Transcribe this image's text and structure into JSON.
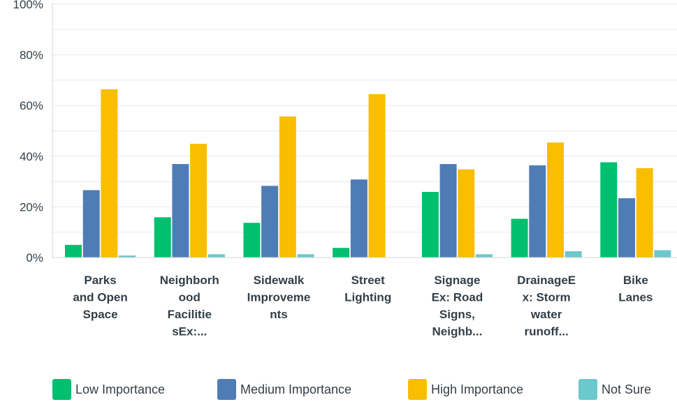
{
  "chart_data": {
    "type": "bar",
    "title": "",
    "xlabel": "",
    "ylabel": "",
    "ylim": [
      0,
      100
    ],
    "yticks": [
      "0%",
      "20%",
      "40%",
      "60%",
      "80%",
      "100%"
    ],
    "grid": true,
    "legend_position": "bottom",
    "categories": [
      [
        "Parks",
        "and Open",
        "Space"
      ],
      [
        "Neighborh",
        "ood",
        "Facilitie",
        "sEx:..."
      ],
      [
        "Sidewalk",
        "Improveme",
        "nts"
      ],
      [
        "Street",
        "Lighting"
      ],
      [
        "Signage",
        "Ex: Road",
        "Signs,",
        "Neighb..."
      ],
      [
        "DrainageE",
        "x: Storm",
        "water",
        "runoff..."
      ],
      [
        "Bike",
        "Lanes"
      ]
    ],
    "series": [
      {
        "name": "Low Importance",
        "color": "#00bf6f",
        "values": [
          5.0,
          15.9,
          13.7,
          3.8,
          25.9,
          15.3,
          37.6
        ]
      },
      {
        "name": "Medium Importance",
        "color": "#507cb6",
        "values": [
          26.6,
          36.9,
          28.3,
          30.8,
          36.9,
          36.4,
          23.4
        ]
      },
      {
        "name": "High Importance",
        "color": "#f9be00",
        "values": [
          66.4,
          44.9,
          55.7,
          64.5,
          34.8,
          45.4,
          35.3
        ]
      },
      {
        "name": "Not Sure",
        "color": "#6bc8cd",
        "values": [
          0.8,
          1.3,
          1.3,
          0.0,
          1.3,
          2.5,
          2.9
        ]
      }
    ]
  }
}
